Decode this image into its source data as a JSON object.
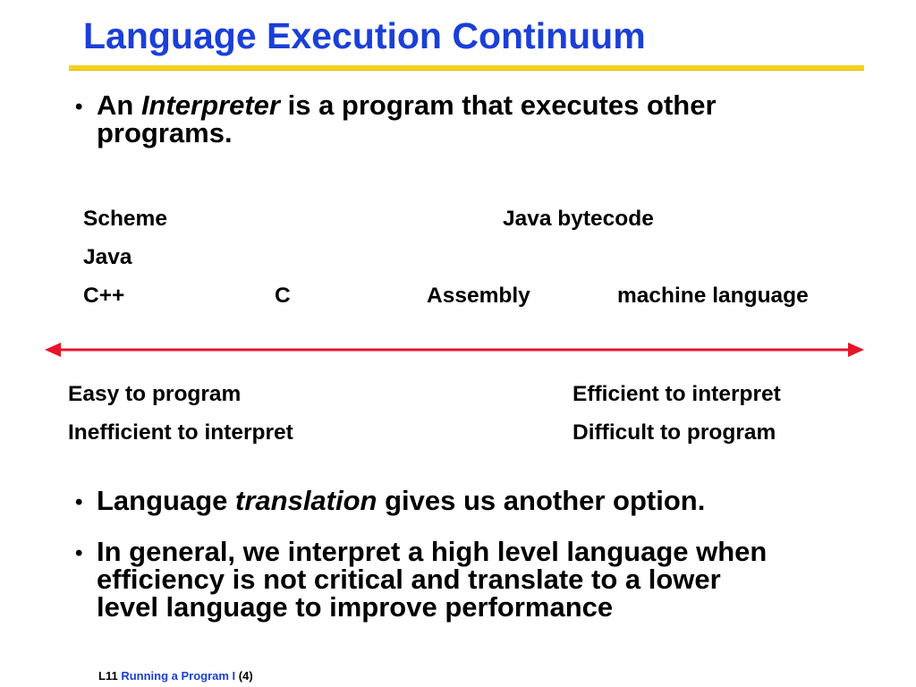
{
  "title": "Language Execution Continuum",
  "colors": {
    "title": "#1b3fd8",
    "rule": "#f5d21c",
    "arrow": "#e8132a"
  },
  "bullets": [
    {
      "pre": "An ",
      "em": "Interpreter",
      "post": " is a program that executes other",
      "line2": "programs."
    },
    {
      "pre": "Language ",
      "em": "translation",
      "post": " gives us another option."
    },
    {
      "line1": "In general, we interpret a high level language when",
      "line2": "efficiency is not critical and translate to a lower",
      "line3": "level language to improve performance"
    }
  ],
  "languages": {
    "scheme": "Scheme",
    "java": "Java",
    "cpp": "C++",
    "c": "C",
    "assembly": "Assembly",
    "bytecode": "Java bytecode",
    "machine": "machine language"
  },
  "axis_labels": {
    "left1": "Easy to program",
    "left2": "Inefficient to interpret",
    "right1": "Efficient to interpret",
    "right2": "Difficult to program"
  },
  "footer": {
    "lecture": "L11",
    "name": "Running a Program I",
    "page": "(4)"
  }
}
